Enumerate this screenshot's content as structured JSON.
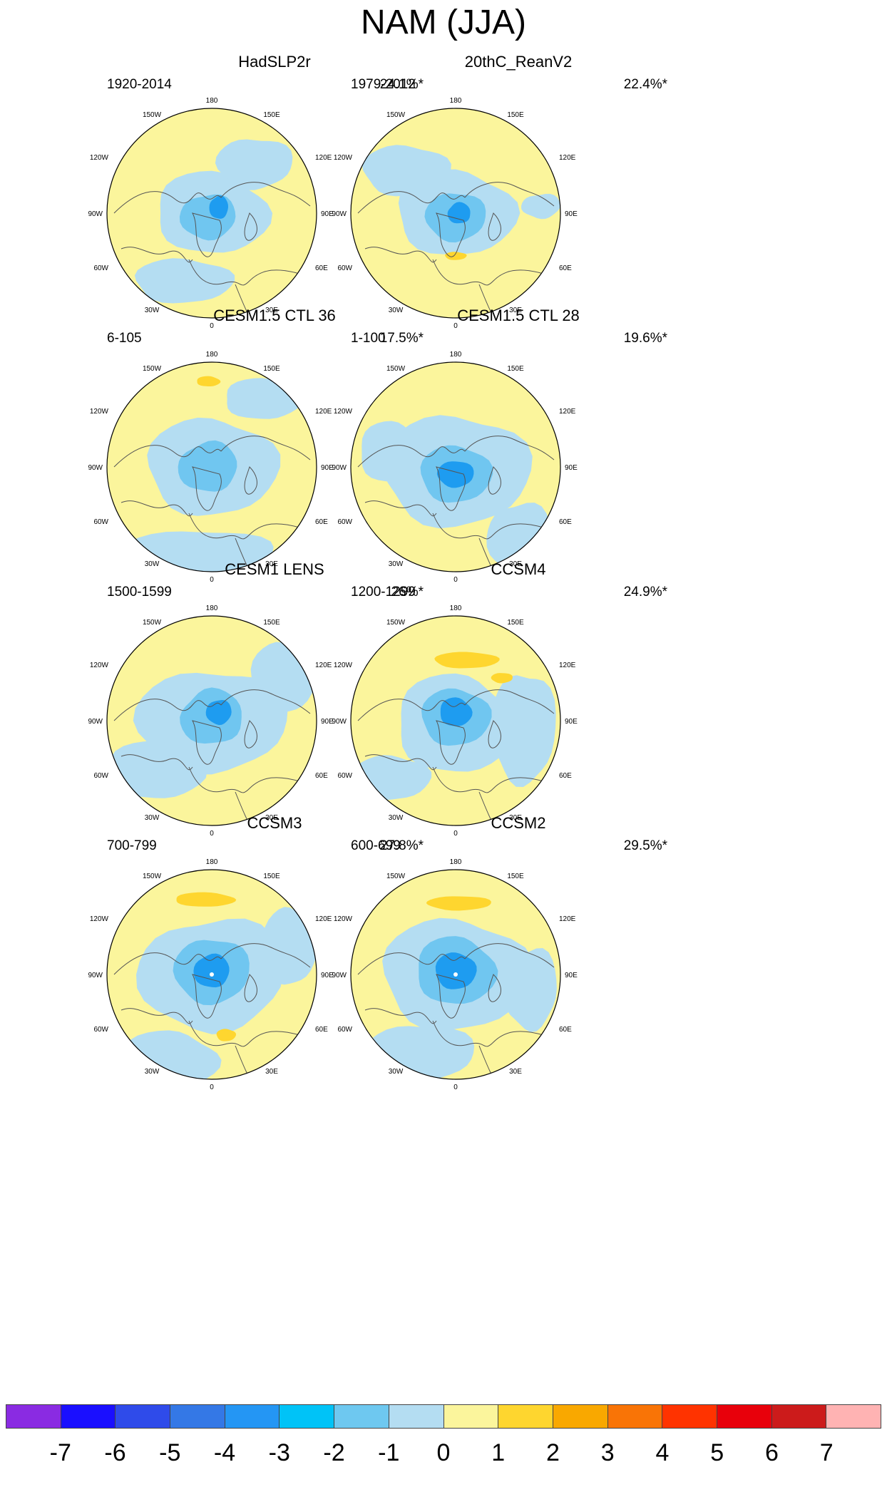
{
  "title": "NAM (JJA)",
  "lon_labels": {
    "north": "180",
    "ne": "150E",
    "nw": "150W",
    "e_upper": "120E",
    "w_upper": "120W",
    "e": "90E",
    "w": "90W",
    "e_lower": "60E",
    "w_lower": "60W",
    "se": "30E",
    "sw": "30W",
    "south": "0"
  },
  "colors": {
    "minus2": "#70c6f0",
    "minus1": "#b4ddf2",
    "zero": "#fbf59c",
    "plus1": "#fed62f",
    "minus3": "#1e9cf0",
    "plus2": "#f9a800",
    "white_core": "#ffffff",
    "coast": "#555555"
  },
  "panels": [
    {
      "title": "HadSLP2r",
      "years": "1920-2014",
      "percent": "24.1%*"
    },
    {
      "title": "20thC_ReanV2",
      "years": "1979-2012",
      "percent": "22.4%*"
    },
    {
      "title": "CESM1.5 CTL 36",
      "years": "6-105",
      "percent": "17.5%*"
    },
    {
      "title": "CESM1.5 CTL 28",
      "years": "1-100",
      "percent": "19.6%*"
    },
    {
      "title": "CESM1 LENS",
      "years": "1500-1599",
      "percent": "26%*"
    },
    {
      "title": "CCSM4",
      "years": "1200-1299",
      "percent": "24.9%*"
    },
    {
      "title": "CCSM3",
      "years": "700-799",
      "percent": "27.8%*"
    },
    {
      "title": "CCSM2",
      "years": "600-699",
      "percent": "29.5%*"
    }
  ],
  "colorbar": {
    "labels": [
      "-7",
      "-6",
      "-5",
      "-4",
      "-3",
      "-2",
      "-1",
      "0",
      "1",
      "2",
      "3",
      "4",
      "5",
      "6",
      "7"
    ],
    "colors": [
      "#8a2be2",
      "#1a0fff",
      "#2f4bea",
      "#3478e6",
      "#2496f4",
      "#00c3f7",
      "#6ec8f0",
      "#b4ddf2",
      "#fbf59c",
      "#fed62f",
      "#f9a800",
      "#f97406",
      "#ff3300",
      "#e8000b",
      "#cc1b1b",
      "#ffb3b3"
    ]
  }
}
